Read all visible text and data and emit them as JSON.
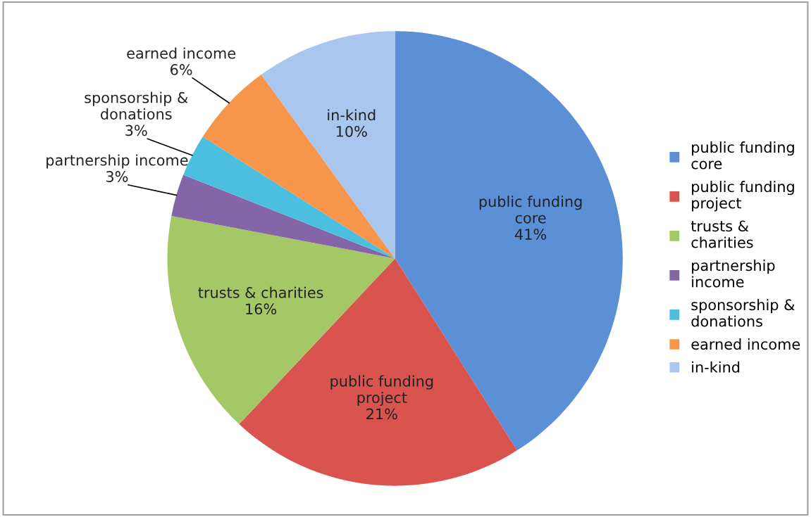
{
  "chart_data": {
    "type": "pie",
    "categories": [
      "public funding core",
      "public funding project",
      "trusts & charities",
      "partnership income",
      "sponsorship & donations",
      "earned income",
      "in-kind"
    ],
    "values": [
      41,
      21,
      16,
      3,
      3,
      6,
      10
    ],
    "value_labels": [
      "41%",
      "21%",
      "16%",
      "3%",
      "3%",
      "6%",
      "10%"
    ],
    "colors": [
      "#5b8fd6",
      "#d9534f",
      "#a5c866",
      "#8466a8",
      "#4cbfe0",
      "#f7954a",
      "#a9c6ef"
    ],
    "legend": "right"
  }
}
